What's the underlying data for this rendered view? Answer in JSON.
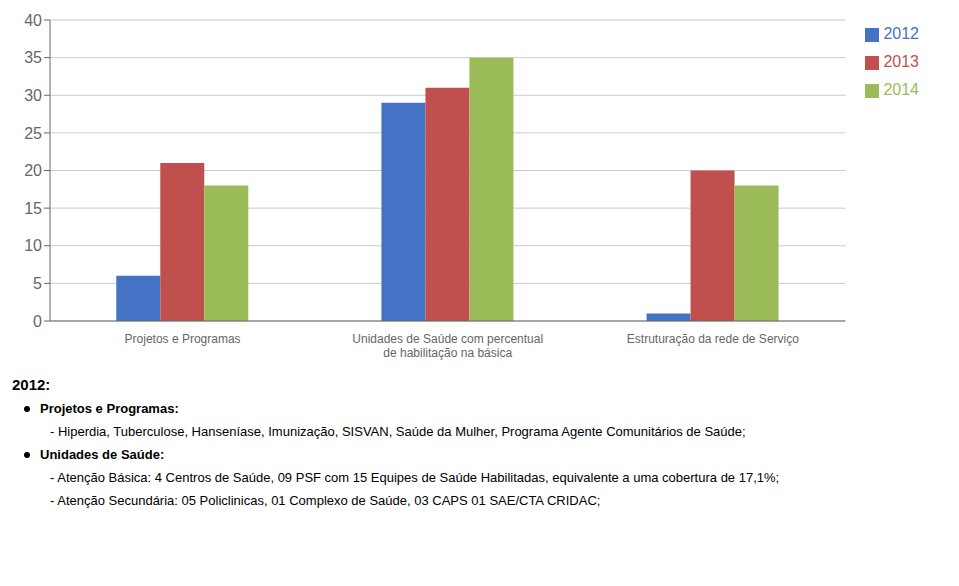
{
  "chart_data": {
    "type": "bar",
    "categories": [
      "Projetos e Programas",
      "Unidades de Saúde com percentual\nde habilitação na básica",
      "Estruturação da rede de Serviço"
    ],
    "series": [
      {
        "name": "2012",
        "color": "#4472C4",
        "values": [
          6,
          29,
          1
        ]
      },
      {
        "name": "2013",
        "color": "#C0504D",
        "values": [
          21,
          31,
          20
        ]
      },
      {
        "name": "2014",
        "color": "#9BBB59",
        "values": [
          18,
          35,
          18
        ]
      }
    ],
    "ylim": [
      0,
      40
    ],
    "yticks": [
      0,
      5,
      10,
      15,
      20,
      25,
      30,
      35,
      40
    ],
    "grid": true,
    "legend": "right",
    "annotations": [
      "2012:",
      "Projetos e Programas:",
      "- Hiperdia, Tuberculose, Hanseníase, Imunização, SISVAN, Saúde da Mulher, Programa Agente Comunitários de Saúde;",
      "Unidades de Saúde:",
      "- Atenção Básica: 4 Centros de Saúde, 09 PSF com 15 Equipes de Saúde Habilitadas, equivalente a uma cobertura de 17,1%;",
      "- Atenção Secundária: 05 Policlinicas, 01 Complexo de Saúde, 03 CAPS 01 SAE/CTA CRIDAC;"
    ]
  }
}
